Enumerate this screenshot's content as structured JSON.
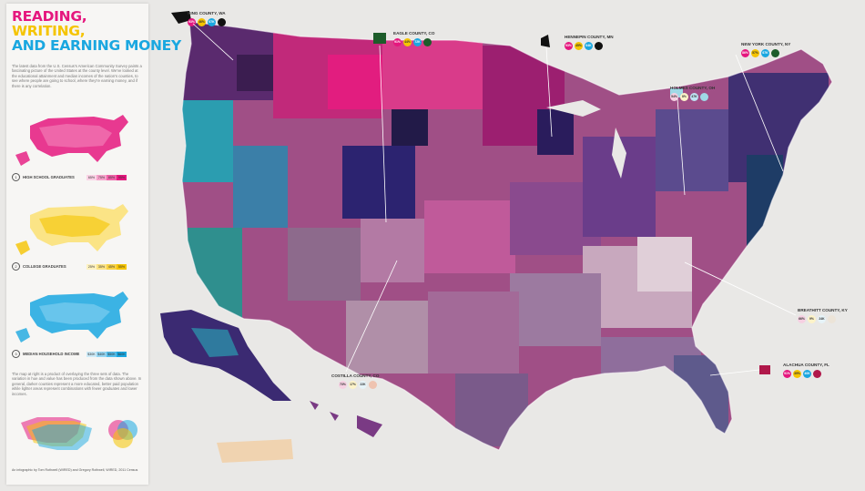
{
  "title": {
    "line1": "READING,",
    "line2": "WRITING,",
    "line3": "AND EARNING MONEY"
  },
  "colors": {
    "magenta": "#e5177e",
    "yellow": "#f5c400",
    "cyan": "#1aa7e0",
    "background": "#e9e8e6"
  },
  "intro_text": "The latest data from the U.S. Census's American Community Survey paints a fascinating picture of the United States at the county level. We've looked at the educational attainment and median incomes of the nation's counties, to see where people are going to school, where they're earning money, and if there is any correlation.",
  "legends": [
    {
      "num": "1",
      "label": "HIGH SCHOOL GRADUATES",
      "ticks": [
        "65%",
        "75%",
        "85%",
        "95%"
      ]
    },
    {
      "num": "2",
      "label": "COLLEGE GRADUATES",
      "ticks": [
        "25%",
        "35%",
        "45%",
        "55%"
      ]
    },
    {
      "num": "3",
      "label": "MEDIAN HOUSEHOLD INCOME",
      "ticks": [
        "$30K",
        "$40K",
        "$50K",
        "$60K"
      ]
    }
  ],
  "body_text": "The map at right is a product of overlaying the three sets of data. The variation in hue and value has been produced from the data shown above. In general, darker counties represent a more educated, better paid population while lighter areas represent combinations with fewer graduates and lower incomes.",
  "credits": "An infographic by Tom Rothwell (WIRED) and Gregory Rothwell, WIRED, 2011 Census",
  "counties": [
    {
      "name": "KING COUNTY, WA",
      "values": [
        "93%",
        "46%",
        "67K"
      ]
    },
    {
      "name": "EAGLE COUNTY, CO",
      "values": [
        "91%",
        "44%",
        "72K"
      ]
    },
    {
      "name": "HENNEPIN COUNTY, MN",
      "values": [
        "93%",
        "45%",
        "64K"
      ]
    },
    {
      "name": "NEW YORK COUNTY, NY",
      "values": [
        "86%",
        "57%",
        "67K"
      ]
    },
    {
      "name": "HOLMES COUNTY, OH",
      "values": [
        "54%",
        "8%",
        "47K"
      ]
    },
    {
      "name": "BREATHITT COUNTY, KY",
      "values": [
        "66%",
        "9%",
        "24K"
      ]
    },
    {
      "name": "ALACHUA COUNTY, FL",
      "values": [
        "91%",
        "39%",
        "40K"
      ]
    },
    {
      "name": "COSTILLA COUNTY, CO",
      "values": [
        "73%",
        "17%",
        "22K"
      ]
    }
  ]
}
